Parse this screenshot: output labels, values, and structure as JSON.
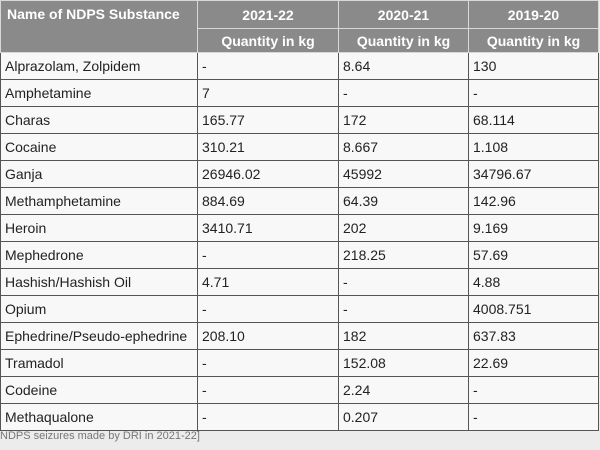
{
  "table": {
    "header": {
      "title": "Name of NDPS Substance",
      "years": [
        "2021-22",
        "2020-21",
        "2019-20"
      ],
      "units": [
        "Quantity in kg",
        "Quantity in kg",
        "Quantity in kg"
      ]
    },
    "rows": [
      [
        "Alprazolam, Zolpidem",
        "-",
        "8.64",
        "130"
      ],
      [
        "Amphetamine",
        "7",
        "-",
        "-"
      ],
      [
        "Charas",
        "165.77",
        "172",
        "68.114"
      ],
      [
        "Cocaine",
        "310.21",
        "8.667",
        "1.108"
      ],
      [
        "Ganja",
        "26946.02",
        "45992",
        "34796.67"
      ],
      [
        "Methamphetamine",
        "884.69",
        "64.39",
        "142.96"
      ],
      [
        "Heroin",
        "3410.71",
        "202",
        "9.169"
      ],
      [
        "Mephedrone",
        "-",
        "218.25",
        "57.69"
      ],
      [
        "Hashish/Hashish Oil",
        "4.71",
        "-",
        "4.88"
      ],
      [
        "Opium",
        "-",
        "-",
        "4008.751"
      ],
      [
        "Ephedrine/Pseudo-ephedrine",
        "208.10",
        "182",
        "637.83"
      ],
      [
        "Tramadol",
        "-",
        "152.08",
        "22.69"
      ],
      [
        "Codeine",
        "-",
        "2.24",
        "-"
      ],
      [
        "Methaqualone",
        "-",
        "0.207",
        "-"
      ]
    ],
    "caption": "NDPS seizures made by DRI in 2021-22]"
  }
}
